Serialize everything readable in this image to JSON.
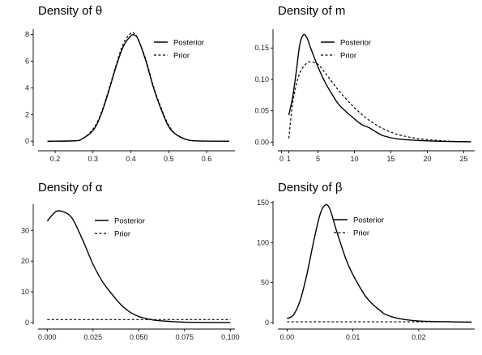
{
  "chart_data": [
    {
      "type": "line",
      "title": "Density of θ",
      "xlabel": "",
      "ylabel": "",
      "xlim": [
        0.155,
        0.675
      ],
      "ylim": [
        -0.35,
        8.4
      ],
      "x_ticks": [
        0.2,
        0.3,
        0.4,
        0.5,
        0.6
      ],
      "x_tick_labels": [
        "0.2",
        "0.3",
        "0.4",
        "0.5",
        "0.6"
      ],
      "y_ticks": [
        0,
        2,
        4,
        6,
        8
      ],
      "y_tick_labels": [
        "0",
        "2",
        "4",
        "6",
        "8"
      ],
      "legend": [
        "Posterior",
        "Prior"
      ],
      "legend_position": "top-right",
      "grid": false,
      "series": [
        {
          "name": "Posterior",
          "style": "solid",
          "points": [
            [
              0.18,
              0
            ],
            [
              0.25,
              0.03
            ],
            [
              0.27,
              0.15
            ],
            [
              0.3,
              0.8
            ],
            [
              0.32,
              1.9
            ],
            [
              0.34,
              3.6
            ],
            [
              0.36,
              5.5
            ],
            [
              0.38,
              7.1
            ],
            [
              0.4,
              7.9
            ],
            [
              0.41,
              7.95
            ],
            [
              0.42,
              7.6
            ],
            [
              0.44,
              6.0
            ],
            [
              0.46,
              4.0
            ],
            [
              0.48,
              2.4
            ],
            [
              0.5,
              1.1
            ],
            [
              0.52,
              0.5
            ],
            [
              0.55,
              0.1
            ],
            [
              0.58,
              0.02
            ],
            [
              0.66,
              0
            ]
          ]
        },
        {
          "name": "Prior",
          "style": "dashed",
          "points": [
            [
              0.18,
              0
            ],
            [
              0.25,
              0.03
            ],
            [
              0.27,
              0.15
            ],
            [
              0.3,
              0.9
            ],
            [
              0.32,
              2.0
            ],
            [
              0.34,
              3.7
            ],
            [
              0.36,
              5.6
            ],
            [
              0.38,
              7.3
            ],
            [
              0.4,
              8.1
            ],
            [
              0.41,
              8.05
            ],
            [
              0.42,
              7.6
            ],
            [
              0.44,
              6.1
            ],
            [
              0.46,
              4.1
            ],
            [
              0.48,
              2.5
            ],
            [
              0.5,
              1.2
            ],
            [
              0.52,
              0.5
            ],
            [
              0.55,
              0.1
            ],
            [
              0.58,
              0.02
            ],
            [
              0.66,
              0
            ]
          ]
        }
      ]
    },
    {
      "type": "line",
      "title": "Density of m",
      "xlabel": "",
      "ylabel": "",
      "xlim": [
        -0.5,
        26.5
      ],
      "ylim": [
        -0.006,
        0.18
      ],
      "x_ticks": [
        0,
        1,
        5,
        10,
        15,
        20,
        25
      ],
      "x_tick_labels": [
        "0",
        "1",
        "5",
        "10",
        "15",
        "20",
        "25"
      ],
      "y_ticks": [
        0,
        0.05,
        0.1,
        0.15
      ],
      "y_tick_labels": [
        "0.00",
        "0.05",
        "0.10",
        "0.15"
      ],
      "legend": [
        "Posterior",
        "Prior"
      ],
      "legend_position": "top-right",
      "grid": false,
      "series": [
        {
          "name": "Posterior",
          "style": "solid",
          "points": [
            [
              1,
              0.043
            ],
            [
              1.5,
              0.07
            ],
            [
              2,
              0.11
            ],
            [
              2.5,
              0.155
            ],
            [
              3,
              0.171
            ],
            [
              3.5,
              0.166
            ],
            [
              4,
              0.15
            ],
            [
              5,
              0.12
            ],
            [
              6,
              0.095
            ],
            [
              7,
              0.075
            ],
            [
              8,
              0.058
            ],
            [
              10,
              0.037
            ],
            [
              11,
              0.028
            ],
            [
              12,
              0.023
            ],
            [
              13,
              0.016
            ],
            [
              14,
              0.01
            ],
            [
              16,
              0.005
            ],
            [
              20,
              0.002
            ],
            [
              26,
              0.0005
            ]
          ]
        },
        {
          "name": "Prior",
          "style": "dashed",
          "points": [
            [
              1,
              0.006
            ],
            [
              1.5,
              0.06
            ],
            [
              2,
              0.09
            ],
            [
              2.5,
              0.11
            ],
            [
              3,
              0.12
            ],
            [
              3.5,
              0.126
            ],
            [
              4,
              0.128
            ],
            [
              5,
              0.124
            ],
            [
              6,
              0.11
            ],
            [
              7,
              0.095
            ],
            [
              8,
              0.08
            ],
            [
              10,
              0.055
            ],
            [
              12,
              0.035
            ],
            [
              14,
              0.021
            ],
            [
              16,
              0.012
            ],
            [
              18,
              0.007
            ],
            [
              20,
              0.004
            ],
            [
              23,
              0.0015
            ],
            [
              26,
              0.0005
            ]
          ]
        }
      ]
    },
    {
      "type": "line",
      "title": "Density of α",
      "xlabel": "",
      "ylabel": "",
      "xlim": [
        -0.005,
        0.1025
      ],
      "ylim": [
        -0.5,
        38.5
      ],
      "x_ticks": [
        0,
        0.025,
        0.05,
        0.075,
        0.1
      ],
      "x_tick_labels": [
        "0.000",
        "0.025",
        "0.050",
        "0.075",
        "0.100"
      ],
      "y_ticks": [
        0,
        10,
        20,
        30
      ],
      "y_tick_labels": [
        "0",
        "10",
        "20",
        "30"
      ],
      "legend": [
        "Posterior",
        "Prior"
      ],
      "legend_position": "top-right",
      "grid": false,
      "series": [
        {
          "name": "Posterior",
          "style": "solid",
          "points": [
            [
              0,
              33
            ],
            [
              0.002,
              34.5
            ],
            [
              0.005,
              36.2
            ],
            [
              0.008,
              36.2
            ],
            [
              0.012,
              35
            ],
            [
              0.015,
              32.5
            ],
            [
              0.02,
              26
            ],
            [
              0.025,
              19
            ],
            [
              0.03,
              13.5
            ],
            [
              0.035,
              9.5
            ],
            [
              0.04,
              6
            ],
            [
              0.045,
              3.5
            ],
            [
              0.05,
              2
            ],
            [
              0.055,
              1.2
            ],
            [
              0.06,
              0.7
            ],
            [
              0.07,
              0.3
            ],
            [
              0.08,
              0.1
            ],
            [
              0.1,
              0.05
            ]
          ]
        },
        {
          "name": "Prior",
          "style": "dashed",
          "points": [
            [
              0,
              1
            ],
            [
              0.1,
              1
            ]
          ]
        }
      ]
    },
    {
      "type": "line",
      "title": "Density of β",
      "xlabel": "",
      "ylabel": "",
      "xlim": [
        -0.0014,
        0.0285
      ],
      "ylim": [
        -2,
        152
      ],
      "x_ticks": [
        0,
        0.01,
        0.02
      ],
      "x_tick_labels": [
        "0.00",
        "0.01",
        "0.02"
      ],
      "y_ticks": [
        0,
        50,
        100,
        150
      ],
      "y_tick_labels": [
        "0",
        "50",
        "100",
        "150"
      ],
      "legend": [
        "Posterior",
        "Prior"
      ],
      "legend_position": "top-right",
      "grid": false,
      "series": [
        {
          "name": "Posterior",
          "style": "solid",
          "points": [
            [
              0,
              5
            ],
            [
              0.001,
              10
            ],
            [
              0.002,
              28
            ],
            [
              0.003,
              60
            ],
            [
              0.004,
              100
            ],
            [
              0.005,
              135
            ],
            [
              0.0058,
              147
            ],
            [
              0.0065,
              142
            ],
            [
              0.0075,
              115
            ],
            [
              0.009,
              78
            ],
            [
              0.01,
              60
            ],
            [
              0.011,
              45
            ],
            [
              0.012,
              32
            ],
            [
              0.013,
              23
            ],
            [
              0.014,
              16
            ],
            [
              0.015,
              10
            ],
            [
              0.017,
              5
            ],
            [
              0.02,
              2
            ],
            [
              0.025,
              1
            ],
            [
              0.028,
              0.5
            ]
          ]
        },
        {
          "name": "Prior",
          "style": "dashed",
          "points": [
            [
              0,
              1
            ],
            [
              0.028,
              1
            ]
          ]
        }
      ]
    }
  ]
}
